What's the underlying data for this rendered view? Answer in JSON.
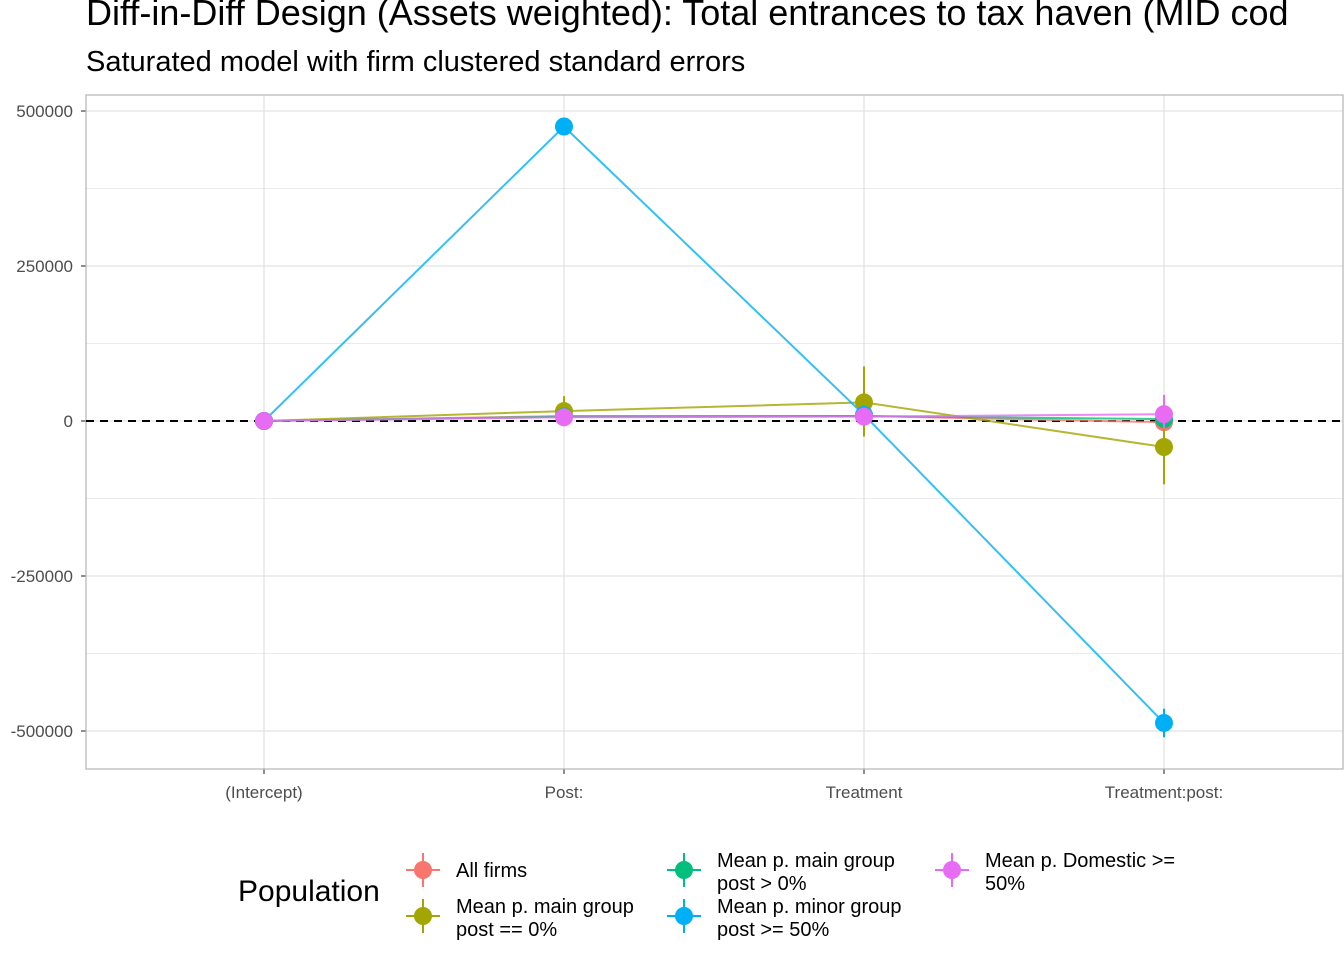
{
  "chart_data": {
    "type": "line",
    "title": "Diff-in-Diff Design (Assets weighted): Total entrances to tax haven (MID cod",
    "subtitle": "Saturated model with firm clustered standard errors",
    "xlabel": "",
    "ylabel": "",
    "categories": [
      "(Intercept)",
      "Post:",
      "Treatment",
      "Treatment:post:"
    ],
    "ylim": [
      -560000,
      520000
    ],
    "yticks": [
      500000,
      250000,
      0,
      -250000,
      -500000
    ],
    "ytick_labels": [
      "500000",
      "250000",
      "0",
      "-250000",
      "-500000"
    ],
    "grid": true,
    "reference_line": {
      "y": 0,
      "style": "dashed"
    },
    "legend": {
      "title": "Population",
      "position": "bottom"
    },
    "series": [
      {
        "name": "All firms",
        "color": "#F8766D",
        "values": [
          0,
          8000,
          8000,
          -2000
        ],
        "lower": [
          0,
          4000,
          3000,
          -12000
        ],
        "upper": [
          0,
          12000,
          13000,
          8000
        ]
      },
      {
        "name": "Mean p. main group\npost == 0%",
        "color": "#A3A500",
        "values": [
          0,
          16000,
          30000,
          -42000
        ],
        "lower": [
          0,
          -5000,
          -25000,
          -102000
        ],
        "upper": [
          0,
          40000,
          88000,
          18000
        ]
      },
      {
        "name": "Mean p. main group\npost > 0%",
        "color": "#00BF7D",
        "values": [
          0,
          7000,
          8000,
          3000
        ],
        "lower": [
          0,
          3000,
          2000,
          -6000
        ],
        "upper": [
          0,
          11000,
          14000,
          12000
        ]
      },
      {
        "name": "Mean p. minor group\npost >= 50%",
        "color": "#00B0F6",
        "values": [
          0,
          475000,
          10000,
          -487000
        ],
        "lower": [
          0,
          467000,
          -2000,
          -510000
        ],
        "upper": [
          0,
          483000,
          22000,
          -464000
        ]
      },
      {
        "name": "Mean p. Domestic >=\n50%",
        "color": "#E76BF3",
        "values": [
          0,
          6000,
          7000,
          11000
        ],
        "lower": [
          0,
          1000,
          0,
          -12000
        ],
        "upper": [
          0,
          11000,
          14000,
          42000
        ]
      }
    ]
  }
}
